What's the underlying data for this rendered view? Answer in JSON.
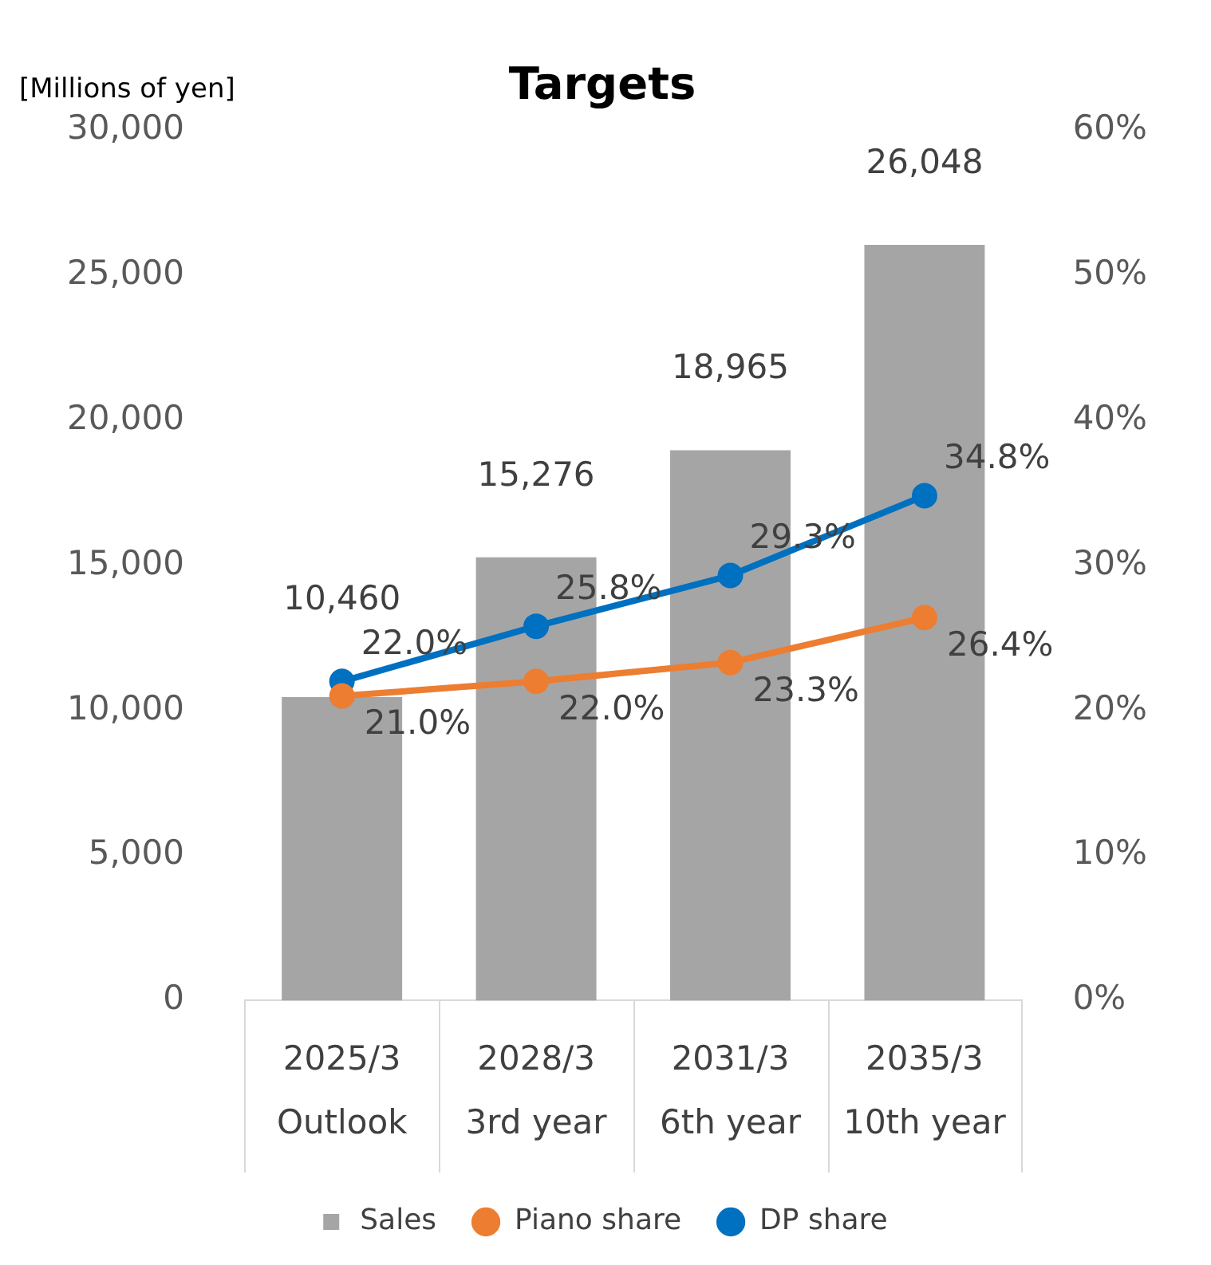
{
  "chart_data": {
    "type": "bar",
    "title": "Targets",
    "ylabel": "[Millions of yen]",
    "categories": [
      "2025/3\nOutlook",
      "2028/3\n3rd year",
      "2031/3\n6th year",
      "2035/3\n10th year"
    ],
    "series": [
      {
        "name": "Sales",
        "color": "#a5a5a5",
        "values": [
          10460,
          15276,
          18965,
          26048
        ],
        "value_labels": [
          "10,460",
          "15,276",
          "18,965",
          "26,048"
        ]
      },
      {
        "name": "Piano share",
        "type": "line",
        "axis": "y2",
        "color": "#ed7d31",
        "values": [
          21.0,
          22.0,
          23.3,
          26.4
        ],
        "value_labels": [
          "21.0%",
          "22.0%",
          "23.3%",
          "26.4%"
        ]
      },
      {
        "name": "DP share",
        "type": "line",
        "axis": "y2",
        "color": "#0070c0",
        "values": [
          22.0,
          25.8,
          29.3,
          34.8
        ],
        "value_labels": [
          "22.0%",
          "25.8%",
          "29.3%",
          "34.8%"
        ]
      }
    ],
    "ylim": [
      0,
      30000
    ],
    "yticks": [
      {
        "value": 0,
        "label": "0"
      },
      {
        "value": 5000,
        "label": "5,000"
      },
      {
        "value": 10000,
        "label": "10,000"
      },
      {
        "value": 15000,
        "label": "15,000"
      },
      {
        "value": 20000,
        "label": "20,000"
      },
      {
        "value": 25000,
        "label": "25,000"
      },
      {
        "value": 30000,
        "label": "30,000"
      }
    ],
    "y2lim": [
      0,
      60
    ],
    "y2ticks": [
      {
        "value": 0,
        "label": "0%"
      },
      {
        "value": 10,
        "label": "10%"
      },
      {
        "value": 20,
        "label": "20%"
      },
      {
        "value": 30,
        "label": "30%"
      },
      {
        "value": 40,
        "label": "40%"
      },
      {
        "value": 50,
        "label": "50%"
      },
      {
        "value": 60,
        "label": "60%"
      }
    ],
    "legend": "bottom",
    "marker": "circle",
    "line_style": "solid"
  }
}
